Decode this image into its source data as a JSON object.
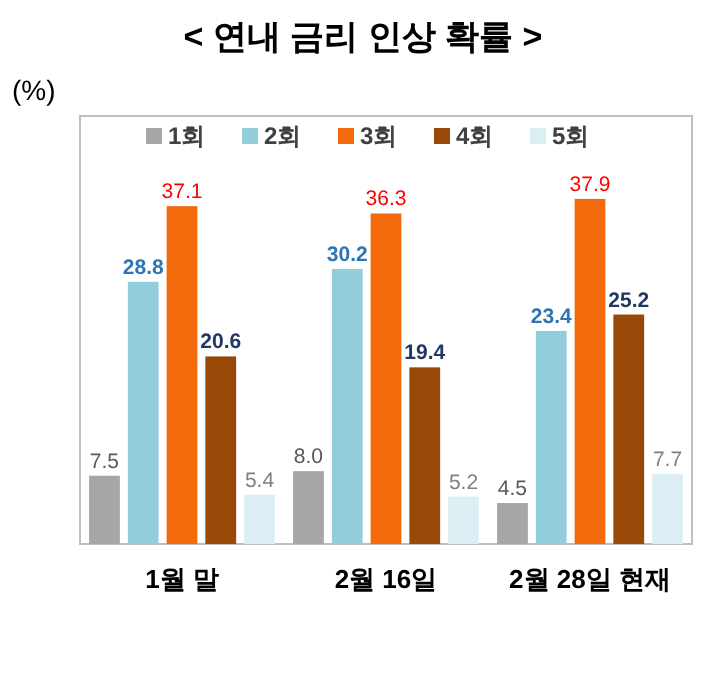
{
  "chart_data": {
    "type": "bar",
    "title": "< 연내 금리 인상 확률 >",
    "ylabel": "(%)",
    "categories": [
      "1월 말",
      "2월 16일",
      "2월 28일 현재"
    ],
    "series": [
      {
        "name": "1회",
        "color": "#a6a6a6",
        "values": [
          7.5,
          8.0,
          4.5
        ],
        "value_labels": [
          "7.5",
          "8.0",
          "4.5"
        ]
      },
      {
        "name": "2회",
        "color": "#92cddc",
        "values": [
          28.8,
          30.2,
          23.4
        ],
        "value_labels": [
          "28.8",
          "30.2",
          "23.4"
        ]
      },
      {
        "name": "3회",
        "color": "#f26a0c",
        "values": [
          37.1,
          36.3,
          37.9
        ],
        "value_labels": [
          "37.1",
          "36.3",
          "37.9"
        ]
      },
      {
        "name": "4회",
        "color": "#984807",
        "values": [
          20.6,
          19.4,
          25.2
        ],
        "value_labels": [
          "20.6",
          "19.4",
          "25.2"
        ]
      },
      {
        "name": "5회",
        "color": "#dbeef4",
        "values": [
          5.4,
          5.2,
          7.7
        ],
        "value_labels": [
          "5.4",
          "5.2",
          "7.7"
        ]
      }
    ],
    "legend": "top"
  }
}
